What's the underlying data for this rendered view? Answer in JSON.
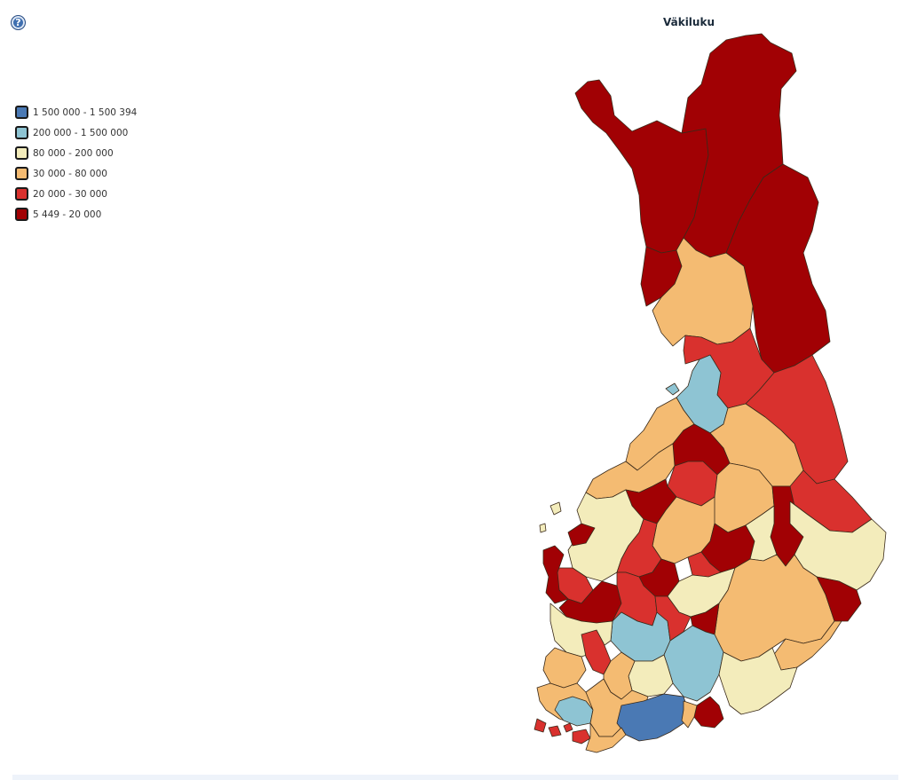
{
  "title": "Väkiluku",
  "help": {
    "icon": "help-icon",
    "glyph": "?"
  },
  "legend": {
    "items": [
      {
        "label": "1 500 000 - 1 500 394",
        "color": "#4a79b4"
      },
      {
        "label": "200 000 - 1 500 000",
        "color": "#8ec4d3"
      },
      {
        "label": "80 000 - 200 000",
        "color": "#f3ecbb"
      },
      {
        "label": "30 000 - 80 000",
        "color": "#f4bb72"
      },
      {
        "label": "20 000 - 30 000",
        "color": "#d9312e"
      },
      {
        "label": "5 449 - 20 000",
        "color": "#a10104"
      }
    ]
  }
}
